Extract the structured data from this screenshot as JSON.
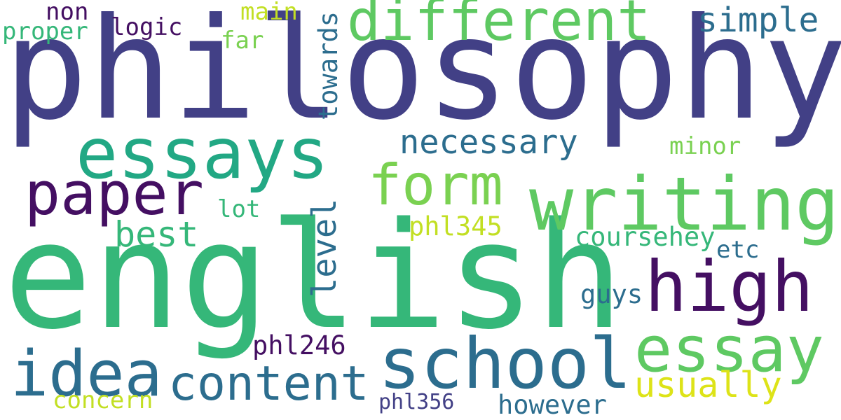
{
  "background": "#ffffff",
  "words": {
    "philosophy": {
      "text": "philosophy",
      "color": "#424086"
    },
    "english": {
      "text": "english",
      "color": "#35b779"
    },
    "writing": {
      "text": "writing",
      "color": "#5ec962"
    },
    "essays": {
      "text": "essays",
      "color": "#22a884"
    },
    "school": {
      "text": "school",
      "color": "#2c6d8e"
    },
    "different": {
      "text": "different",
      "color": "#5ec962"
    },
    "high": {
      "text": "high",
      "color": "#440f62"
    },
    "essay": {
      "text": "essay",
      "color": "#5ec962"
    },
    "paper": {
      "text": "paper",
      "color": "#440f62"
    },
    "form": {
      "text": "form",
      "color": "#7ad151"
    },
    "idea": {
      "text": "idea",
      "color": "#2c6d8e"
    },
    "content": {
      "text": "content",
      "color": "#2c6d8e"
    },
    "necessary": {
      "text": "necessary",
      "color": "#2c6d8e"
    },
    "simple": {
      "text": "simple",
      "color": "#2c6d8e"
    },
    "best": {
      "text": "best",
      "color": "#35b779"
    },
    "usually": {
      "text": "usually",
      "color": "#dde318"
    },
    "level": {
      "text": "level",
      "color": "#2c6d8e"
    },
    "towards": {
      "text": "towards",
      "color": "#2c6d8e"
    },
    "coursehey": {
      "text": "coursehey",
      "color": "#35b779"
    },
    "phl345": {
      "text": "phl345",
      "color": "#c2df23"
    },
    "phl246": {
      "text": "phl246",
      "color": "#440f62"
    },
    "guys": {
      "text": "guys",
      "color": "#2c6d8e"
    },
    "logic": {
      "text": "logic",
      "color": "#440f62"
    },
    "non": {
      "text": "non",
      "color": "#440f62"
    },
    "main": {
      "text": "main",
      "color": "#c2df23"
    },
    "proper": {
      "text": "proper",
      "color": "#35b779"
    },
    "far": {
      "text": "far",
      "color": "#7ad151"
    },
    "minor": {
      "text": "minor",
      "color": "#7ad151"
    },
    "lot": {
      "text": "lot",
      "color": "#35b779"
    },
    "etc": {
      "text": "etc",
      "color": "#2c6d8e"
    },
    "concern": {
      "text": "concern",
      "color": "#c2df23"
    },
    "phl356": {
      "text": "phl356",
      "color": "#424086"
    },
    "however": {
      "text": "however",
      "color": "#2c6d8e"
    }
  }
}
